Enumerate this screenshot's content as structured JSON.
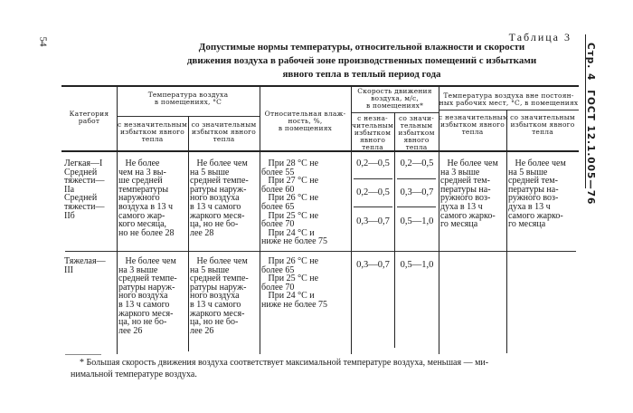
{
  "page_number": "54",
  "side_header": {
    "page_label": "Стр. 4",
    "standard": "ГОСТ 12.1.005—76"
  },
  "table_label": "Таблица 3",
  "title_lines": [
    "Допустимые нормы температуры, относительной влажности и скорости",
    "движения воздуха в рабочей зоне производственных помещений с избытками",
    "явного тепла в теплый период года"
  ],
  "headers": {
    "category": [
      "Категория",
      "работ"
    ],
    "air_temp": [
      "Температура воздуха",
      "в помещениях, °С"
    ],
    "air_temp_low": [
      "с незначительным",
      "избытком явного",
      "тепла"
    ],
    "air_temp_high": [
      "со значительным",
      "избытком явного",
      "тепла"
    ],
    "humidity": [
      "Относительная влаж-",
      "ность, %,",
      "в помещениях"
    ],
    "speed": [
      "Скорость движения",
      "воздуха, м/с,",
      "в помещениях*"
    ],
    "speed_low": [
      "с незна-",
      "чительным",
      "избытком",
      "явного",
      "тепла"
    ],
    "speed_high": [
      "со значи-",
      "тельным",
      "избытком",
      "явного",
      "тепла"
    ],
    "nonperm_temp": [
      "Температура воздуха вне постоян-",
      "ных рабочих мест, °С, в помещениях"
    ],
    "nonperm_low": [
      "с незначительным",
      "избытком явного",
      "тепла"
    ],
    "nonperm_high": [
      "со значительным",
      "избытком явного",
      "тепла"
    ]
  },
  "rows": [
    {
      "category": [
        "Легкая—I",
        "Средней",
        "тяжести—",
        "IIа",
        "Средней",
        "тяжести—",
        "IIб"
      ],
      "temp_low": [
        "   Не более",
        "чем на 3 вы-",
        "ше средней",
        "температуры",
        "наружного",
        "воздуха в 13 ч",
        "самого жар-",
        "кого месяца,",
        "но не более 28"
      ],
      "temp_high": [
        "   Не более чем",
        "на 5 выше",
        "средней темпе-",
        "ратуры наруж-",
        "ного воздуха",
        "в 13 ч самого",
        "жаркого меся-",
        "ца, но не бо-",
        "лее 28"
      ],
      "humidity": [
        "   При 28 °С не",
        "более 55",
        "   При 27 °С не",
        "более 60",
        "   При 26 °С не",
        "более 65",
        "   При 25 °С не",
        "более 70",
        "   При 24 °С и",
        "ниже не более 75"
      ],
      "speed_low": [
        "0,2—0,5",
        "0,2—0,5",
        "0,3—0,7"
      ],
      "speed_high": [
        "0,2—0,5",
        "0,3—0,7",
        "0,5—1,0"
      ],
      "nonperm_low": [
        "   Не более чем",
        "на 3 выше",
        "средней тем-",
        "пературы на-",
        "ружного воз-",
        "духа в 13 ч",
        "самого жарко-",
        "го месяца"
      ],
      "nonperm_high": [
        "   Не более чем",
        "на 5 выше",
        "средней тем-",
        "пературы на-",
        "ружного воз-",
        "духа в 13 ч",
        "самого жарко-",
        "го месяца"
      ]
    },
    {
      "category": [
        "Тяжелая—",
        "III"
      ],
      "temp_low": [
        "   Не более чем",
        "на 3 выше",
        "средней темпе-",
        "ратуры наруж-",
        "ного воздуха",
        "в 13 ч самого",
        "жаркого меся-",
        "ца, но не бо-",
        "лее 26"
      ],
      "temp_high": [
        "   Не более чем",
        "на 5 выше",
        "средней темпе-",
        "ратуры наруж-",
        "ного воздуха",
        "в 13 ч самого",
        "жаркого меся-",
        "ца, но не бо-",
        "лее 26"
      ],
      "humidity": [
        "   При 26 °С не",
        "более 65",
        "   При 25 °С не",
        "более 70",
        "   При 24 °С и",
        "ниже не более 75"
      ],
      "speed_low": [
        "0,3—0,7"
      ],
      "speed_high": [
        "0,5—1,0"
      ]
    }
  ],
  "footnote": [
    "* Большая скорость движения воздуха соответствует максимальной температуре воздуха, меньшая — ми-",
    "нимальной температуре воздуха."
  ]
}
